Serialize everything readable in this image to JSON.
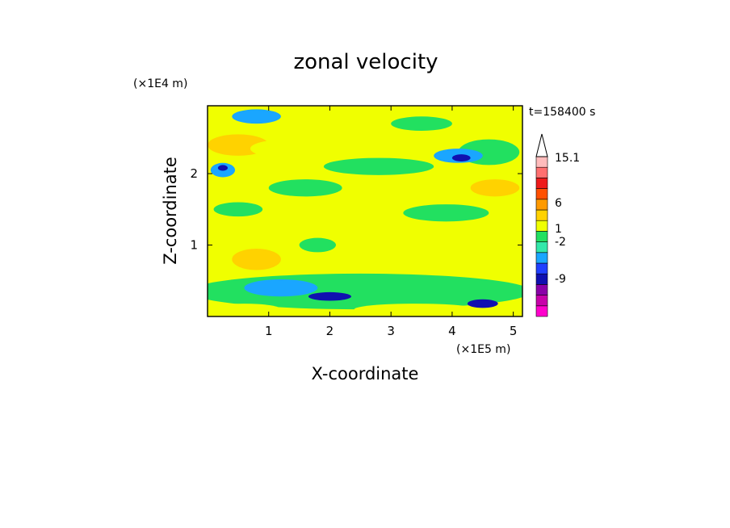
{
  "chart_data": {
    "type": "heatmap",
    "title": "zonal velocity",
    "xlabel": "X-coordinate",
    "ylabel": "Z-coordinate",
    "x_scale_label": "(×1E5 m)",
    "y_scale_label": "(×1E4 m)",
    "time_label": "t=158400 s",
    "xlim": [
      0,
      5.15
    ],
    "ylim": [
      0,
      2.95
    ],
    "x_ticks": [
      "1",
      "2",
      "3",
      "4",
      "5"
    ],
    "y_ticks": [
      "1",
      "2"
    ],
    "colorbar": {
      "levels": [
        -12,
        -9,
        -6,
        -3,
        -2,
        -1,
        0,
        1,
        2,
        3,
        6,
        9,
        12,
        15.1
      ],
      "labels": [
        "15.1",
        "6",
        "1",
        "-2",
        "-9"
      ],
      "colors": [
        "#ff00cc",
        "#c800aa",
        "#8a00a8",
        "#1010b0",
        "#2040ff",
        "#1aa6ff",
        "#33e8aa",
        "#22e060",
        "#f0ff00",
        "#ffd200",
        "#ff9a00",
        "#ff5000",
        "#ee1a1a",
        "#ff7070",
        "#ffbcbc"
      ]
    },
    "regions": [
      {
        "cx": 2.6,
        "cy": 1.5,
        "rx": 5.0,
        "ry": 2.5,
        "level": "yellow"
      },
      {
        "cx": 0.5,
        "cy": 2.4,
        "rx": 0.5,
        "ry": 0.15,
        "level": "orange"
      },
      {
        "cx": 1.2,
        "cy": 2.35,
        "rx": 0.5,
        "ry": 0.12,
        "level": "yellow"
      },
      {
        "cx": 4.6,
        "cy": 2.3,
        "rx": 0.5,
        "ry": 0.18,
        "level": "green"
      },
      {
        "cx": 4.1,
        "cy": 2.25,
        "rx": 0.4,
        "ry": 0.1,
        "level": "cyan"
      },
      {
        "cx": 4.15,
        "cy": 2.22,
        "rx": 0.15,
        "ry": 0.05,
        "level": "blue"
      },
      {
        "cx": 0.25,
        "cy": 2.05,
        "rx": 0.2,
        "ry": 0.1,
        "level": "cyan"
      },
      {
        "cx": 0.25,
        "cy": 2.08,
        "rx": 0.08,
        "ry": 0.04,
        "level": "blue"
      },
      {
        "cx": 0.8,
        "cy": 2.8,
        "rx": 0.4,
        "ry": 0.1,
        "level": "cyan"
      },
      {
        "cx": 3.5,
        "cy": 2.7,
        "rx": 0.5,
        "ry": 0.1,
        "level": "green"
      },
      {
        "cx": 2.8,
        "cy": 2.1,
        "rx": 0.9,
        "ry": 0.12,
        "level": "green"
      },
      {
        "cx": 0.5,
        "cy": 1.5,
        "rx": 0.4,
        "ry": 0.1,
        "level": "green"
      },
      {
        "cx": 1.6,
        "cy": 1.8,
        "rx": 0.6,
        "ry": 0.12,
        "level": "green"
      },
      {
        "cx": 3.9,
        "cy": 1.45,
        "rx": 0.7,
        "ry": 0.12,
        "level": "green"
      },
      {
        "cx": 4.7,
        "cy": 1.8,
        "rx": 0.4,
        "ry": 0.12,
        "level": "orange"
      },
      {
        "cx": 0.8,
        "cy": 0.8,
        "rx": 0.4,
        "ry": 0.15,
        "level": "orange"
      },
      {
        "cx": 1.8,
        "cy": 1.0,
        "rx": 0.3,
        "ry": 0.1,
        "level": "green"
      },
      {
        "cx": 4.4,
        "cy": 0.85,
        "rx": 0.6,
        "ry": 0.12,
        "level": "yellow"
      },
      {
        "cx": 2.5,
        "cy": 0.35,
        "rx": 2.8,
        "ry": 0.25,
        "level": "green"
      },
      {
        "cx": 1.2,
        "cy": 0.4,
        "rx": 0.6,
        "ry": 0.12,
        "level": "cyan"
      },
      {
        "cx": 2.0,
        "cy": 0.28,
        "rx": 0.35,
        "ry": 0.06,
        "level": "blue"
      },
      {
        "cx": 4.5,
        "cy": 0.18,
        "rx": 0.25,
        "ry": 0.06,
        "level": "blue"
      },
      {
        "cx": 3.4,
        "cy": 0.1,
        "rx": 1.0,
        "ry": 0.08,
        "level": "yellow"
      },
      {
        "cx": 0.6,
        "cy": 0.1,
        "rx": 0.6,
        "ry": 0.08,
        "level": "yellow"
      }
    ]
  }
}
